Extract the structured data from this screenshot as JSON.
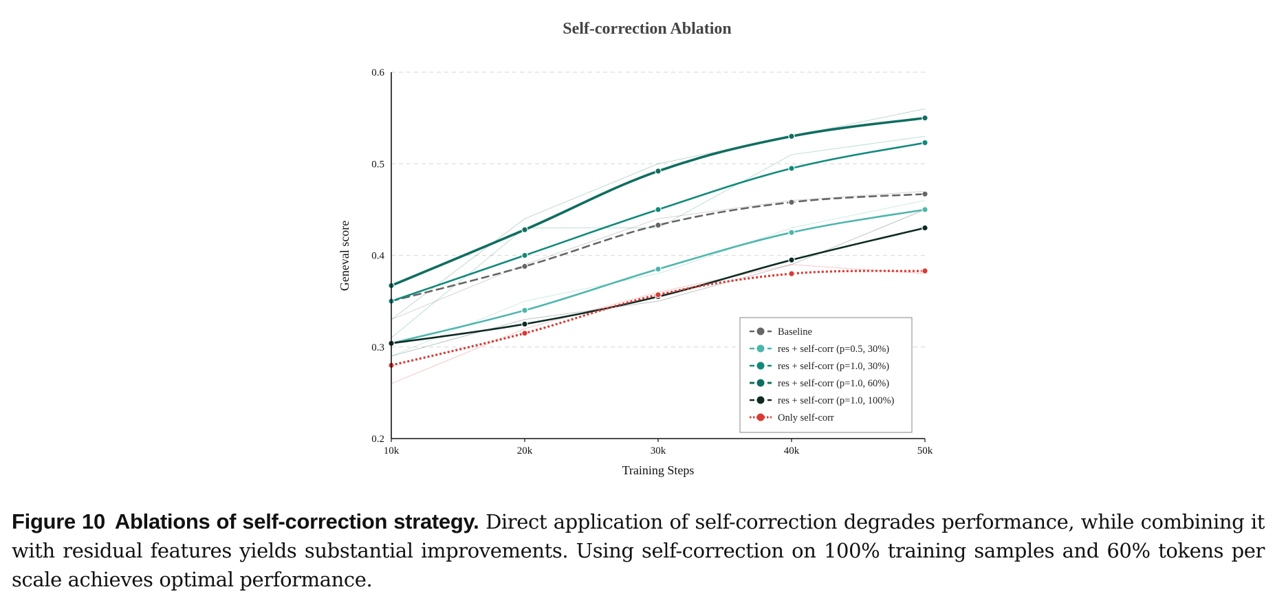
{
  "chart_data": {
    "type": "line",
    "title": "Self-correction Ablation",
    "xlabel": "Training Steps",
    "ylabel": "Geneval score",
    "x": [
      10000,
      20000,
      30000,
      40000,
      50000
    ],
    "x_tick_labels": [
      "10k",
      "20k",
      "30k",
      "40k",
      "50k"
    ],
    "xlim": [
      10000,
      50000
    ],
    "ylim": [
      0.2,
      0.6
    ],
    "y_ticks": [
      0.2,
      0.3,
      0.4,
      0.5,
      0.6
    ],
    "y_tick_labels": [
      "0.2",
      "0.3",
      "0.4",
      "0.5",
      "0.6"
    ],
    "grid": "horizontal-dashed",
    "legend_position": "bottom-right",
    "series": [
      {
        "name": "Baseline",
        "color": "#666666",
        "style": "dashed",
        "values": [
          0.35,
          0.388,
          0.433,
          0.458,
          0.467
        ],
        "raw_values": [
          0.33,
          0.39,
          0.44,
          0.46,
          0.47
        ]
      },
      {
        "name": "res + self-corr (p=0.5, 30%)",
        "color": "#4db6ac",
        "style": "solid",
        "values": [
          0.304,
          0.34,
          0.385,
          0.425,
          0.45
        ],
        "raw_values": [
          0.29,
          0.35,
          0.38,
          0.43,
          0.46
        ]
      },
      {
        "name": "res + self-corr (p=1.0, 30%)",
        "color": "#11897a",
        "style": "solid",
        "values": [
          0.35,
          0.4,
          0.45,
          0.495,
          0.523
        ],
        "raw_values": [
          0.31,
          0.43,
          0.43,
          0.51,
          0.53
        ]
      },
      {
        "name": "res + self-corr (p=1.0, 60%)",
        "color": "#0f6e5f",
        "style": "solid-thick",
        "values": [
          0.367,
          0.428,
          0.492,
          0.53,
          0.55
        ],
        "raw_values": [
          0.33,
          0.44,
          0.5,
          0.53,
          0.56
        ]
      },
      {
        "name": "res + self-corr (p=1.0, 100%)",
        "color": "#0d2b24",
        "style": "solid",
        "values": [
          0.304,
          0.325,
          0.355,
          0.395,
          0.43
        ],
        "raw_values": [
          0.29,
          0.33,
          0.35,
          0.39,
          0.45
        ]
      },
      {
        "name": "Only self-corr",
        "color": "#d93a36",
        "style": "dotted",
        "values": [
          0.28,
          0.315,
          0.357,
          0.38,
          0.383
        ],
        "raw_values": [
          0.26,
          0.32,
          0.36,
          0.39,
          0.38
        ]
      }
    ]
  },
  "caption": {
    "label": "Figure 10",
    "heading": "Ablations of self-correction strategy.",
    "text": "Direct application of self-correction degrades performance, while combining it with residual features yields substantial improvements. Using self-correction on 100% training samples and 60% tokens per scale achieves optimal performance."
  }
}
